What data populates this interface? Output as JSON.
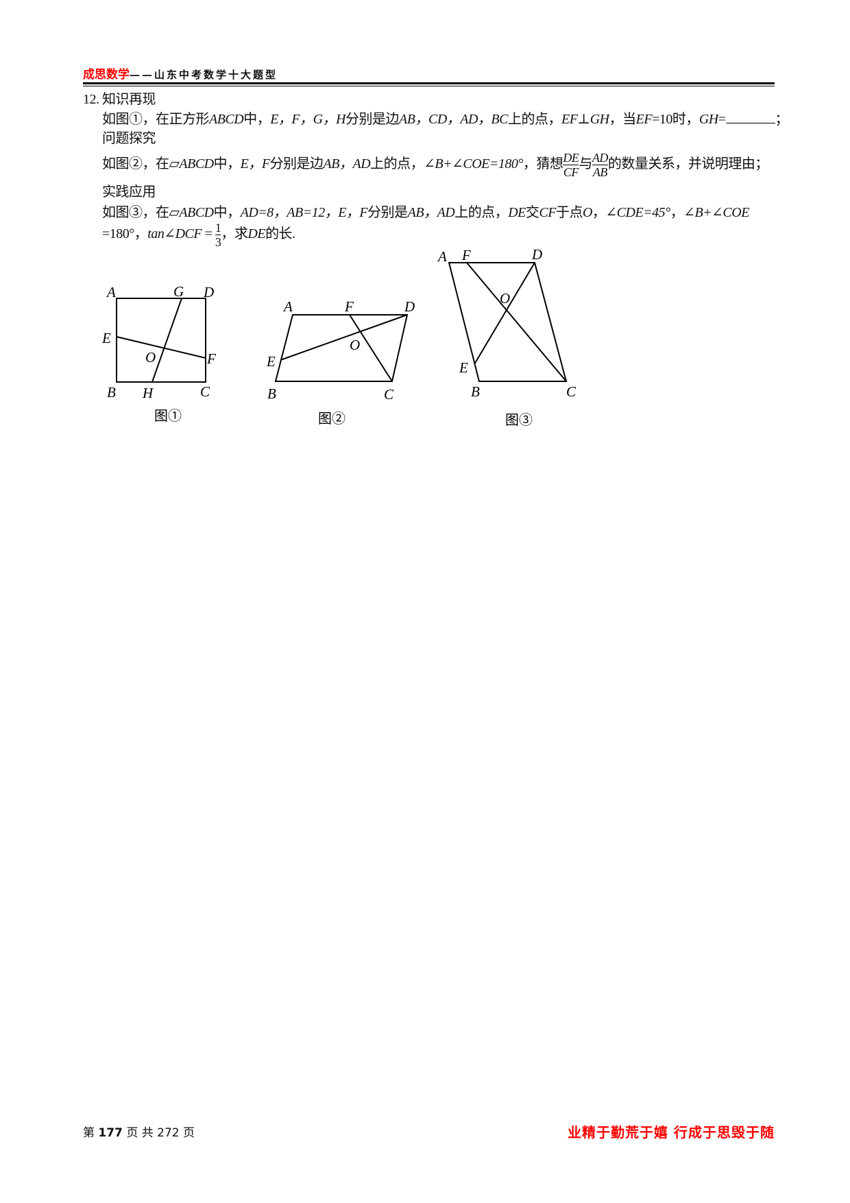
{
  "header": {
    "brand": "成思数学",
    "subtitle": "——山东中考数学十大题型"
  },
  "question": {
    "number": "12.",
    "section1": "知识再现",
    "p1": {
      "prefix": "如图①，在正方形",
      "abcd": "ABCD",
      "mid": "中，",
      "pts": "E，F，G，H",
      "mid2": "分别是边",
      "sides": "AB，CD，AD，BC",
      "mid3": "上的点，",
      "perp": "EF⊥GH",
      "mid4": "，当",
      "ef": "EF",
      "val": "=10时，",
      "gh": "GH",
      "eq": "=",
      "end": "；"
    },
    "section2": "问题探究",
    "p2": {
      "prefix": "如图②，在▱",
      "abcd": "ABCD",
      "mid": "中，",
      "pts": "E，F",
      "mid2": "分别是边",
      "sides": "AB，AD",
      "mid3": "上的点，",
      "angle": "∠B+∠COE=180°",
      "mid4": "，猜想",
      "f1_num": "DE",
      "f1_den": "CF",
      "with": "与",
      "f2_num": "AD",
      "f2_den": "AB",
      "end": "的数量关系，并说明理由；"
    },
    "section3": "实践应用",
    "p3": {
      "prefix": "如图③，在▱",
      "abcd": "ABCD",
      "mid": "中，",
      "ad": "AD=8，AB=12，E，F",
      "mid2": "分别是",
      "sides": "AB，AD",
      "mid3": "上的点，",
      "de": "DE",
      "mid4": "交",
      "cf": "CF",
      "mid5": "于点",
      "o": "O",
      "mid6": "，",
      "angle1": "∠CDE=45°",
      "mid7": "，",
      "angle2": "∠B+∠COE",
      "line2_start": "=180°",
      "mid8": "，",
      "tan": "tan∠DCF",
      "eq": " = ",
      "t_num": "1",
      "t_den": "3",
      "end1": "，求",
      "de2": "DE",
      "end2": "的长."
    }
  },
  "figures": [
    {
      "caption": "图①",
      "labels": {
        "A": "A",
        "B": "B",
        "C": "C",
        "D": "D",
        "E": "E",
        "F": "F",
        "G": "G",
        "H": "H",
        "O": "O"
      }
    },
    {
      "caption": "图②",
      "labels": {
        "A": "A",
        "B": "B",
        "C": "C",
        "D": "D",
        "E": "E",
        "F": "F",
        "O": "O"
      }
    },
    {
      "caption": "图③",
      "labels": {
        "A": "A",
        "B": "B",
        "C": "C",
        "D": "D",
        "E": "E",
        "F": "F",
        "O": "O"
      }
    }
  ],
  "footer": {
    "page_prefix": "第",
    "page": "177",
    "page_mid": "页 共",
    "total": "272",
    "page_suffix": "页",
    "motto": "业精于勤荒于嬉  行成于思毁于随"
  },
  "colors": {
    "brand": "#ff0000",
    "text": "#111111"
  }
}
